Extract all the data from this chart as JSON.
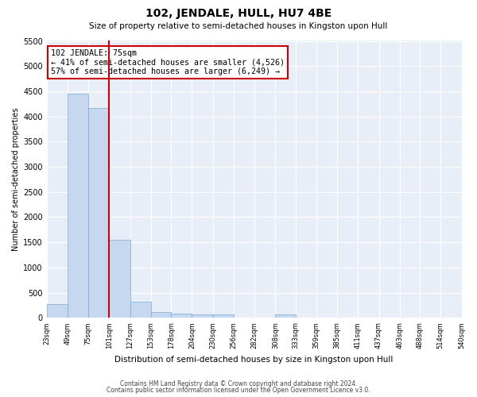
{
  "title": "102, JENDALE, HULL, HU7 4BE",
  "subtitle": "Size of property relative to semi-detached houses in Kingston upon Hull",
  "xlabel": "Distribution of semi-detached houses by size in Kingston upon Hull",
  "ylabel": "Number of semi-detached properties",
  "footer_line1": "Contains HM Land Registry data © Crown copyright and database right 2024.",
  "footer_line2": "Contains public sector information licensed under the Open Government Licence v3.0.",
  "annotation_title": "102 JENDALE: 75sqm",
  "annotation_line1": "← 41% of semi-detached houses are smaller (4,526)",
  "annotation_line2": "57% of semi-detached houses are larger (6,249) →",
  "property_sqm": 75,
  "bin_edges": [
    23,
    49,
    75,
    101,
    127,
    153,
    178,
    204,
    230,
    256,
    282,
    308,
    333,
    359,
    385,
    411,
    437,
    463,
    488,
    514,
    540
  ],
  "bin_labels": [
    "23sqm",
    "49sqm",
    "75sqm",
    "101sqm",
    "127sqm",
    "153sqm",
    "178sqm",
    "204sqm",
    "230sqm",
    "256sqm",
    "282sqm",
    "308sqm",
    "333sqm",
    "359sqm",
    "385sqm",
    "411sqm",
    "437sqm",
    "463sqm",
    "488sqm",
    "514sqm",
    "540sqm"
  ],
  "counts": [
    280,
    4450,
    4170,
    1550,
    320,
    120,
    80,
    65,
    65,
    0,
    0,
    65,
    0,
    0,
    0,
    0,
    0,
    0,
    0,
    0
  ],
  "bar_color": "#c5d8f0",
  "bar_edge_color": "#7aabcf",
  "vline_color": "#cc0000",
  "box_edge_color": "#cc0000",
  "background_color": "#e8eef8",
  "ylim": [
    0,
    5500
  ],
  "yticks": [
    0,
    500,
    1000,
    1500,
    2000,
    2500,
    3000,
    3500,
    4000,
    4500,
    5000,
    5500
  ]
}
